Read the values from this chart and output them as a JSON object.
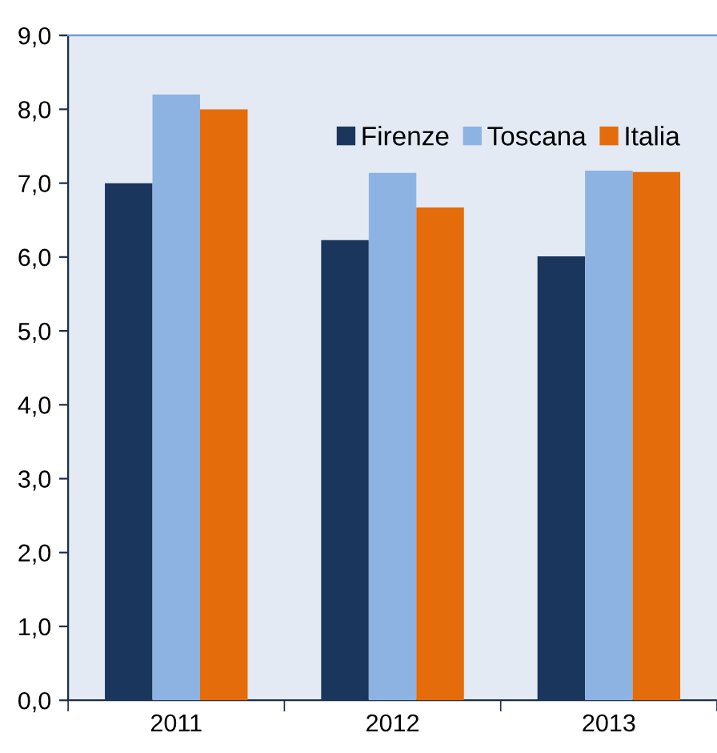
{
  "chart_data": {
    "type": "bar",
    "categories": [
      "2011",
      "2012",
      "2013"
    ],
    "series": [
      {
        "name": "Firenze",
        "color": "#1a365d",
        "values": [
          7.0,
          6.23,
          6.01
        ]
      },
      {
        "name": "Toscana",
        "color": "#8db3e2",
        "values": [
          8.2,
          7.14,
          7.17
        ]
      },
      {
        "name": "Italia",
        "color": "#e46c0a",
        "values": [
          8.0,
          6.67,
          7.15
        ]
      }
    ],
    "ylim": [
      0,
      9
    ],
    "yticks": [
      {
        "value": 0,
        "label": "0,0"
      },
      {
        "value": 1,
        "label": "1,0"
      },
      {
        "value": 2,
        "label": "2,0"
      },
      {
        "value": 3,
        "label": "3,0"
      },
      {
        "value": 4,
        "label": "4,0"
      },
      {
        "value": 5,
        "label": "5,0"
      },
      {
        "value": 6,
        "label": "6,0"
      },
      {
        "value": 7,
        "label": "7,0"
      },
      {
        "value": 8,
        "label": "8,0"
      },
      {
        "value": 9,
        "label": "9,0"
      }
    ],
    "grid": false,
    "legend": "top right"
  }
}
